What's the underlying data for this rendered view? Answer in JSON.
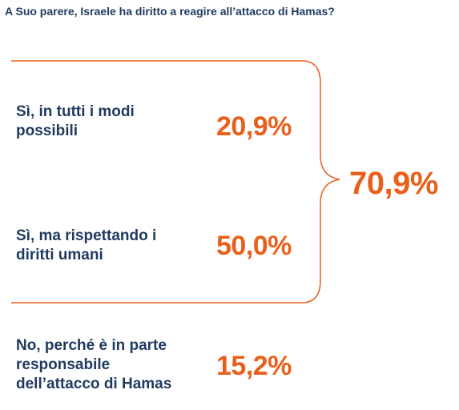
{
  "question": "A Suo parere, Israele ha diritto a reagire all’attacco di Hamas?",
  "chart_data": {
    "type": "table",
    "title": "A Suo parere, Israele ha diritto a reagire all’attacco di Hamas?",
    "rows": [
      {
        "label_lines": [
          "Sì, in tutti i modi",
          "possibili"
        ],
        "value": 20.9,
        "value_label": "20,9%"
      },
      {
        "label_lines": [
          "Sì, ma rispettando i",
          "diritti umani"
        ],
        "value": 50.0,
        "value_label": "50,0%"
      },
      {
        "label_lines": [
          "No, perché è in parte",
          "responsabile",
          "dell’attacco di Hamas"
        ],
        "value": 15.2,
        "value_label": "15,2%"
      }
    ],
    "group": {
      "rows": [
        0,
        1
      ],
      "value": 70.9,
      "value_label": "70,9%"
    }
  },
  "colors": {
    "text": "#1f3a5f",
    "accent": "#e8601c"
  }
}
